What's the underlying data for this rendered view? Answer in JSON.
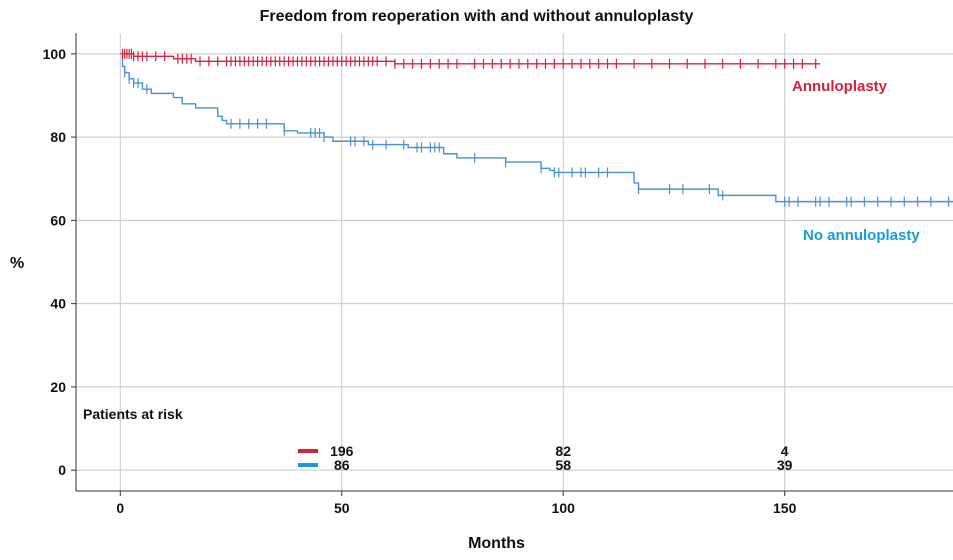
{
  "chart_data": {
    "type": "line",
    "title": "Freedom from reoperation with and without annuloplasty",
    "xlabel": "Months",
    "ylabel": "%",
    "xlim": [
      -10,
      188
    ],
    "ylim": [
      -5,
      105
    ],
    "x_ticks": [
      0,
      50,
      100,
      150
    ],
    "y_ticks": [
      0,
      20,
      40,
      60,
      80,
      100
    ],
    "grid": true,
    "series": [
      {
        "name": "Annuloplasty",
        "color": "#d9213c",
        "steps": [
          [
            0,
            100
          ],
          [
            3,
            99.4
          ],
          [
            12,
            98.8
          ],
          [
            17,
            98.2
          ],
          [
            62,
            97.6
          ],
          [
            158,
            97.6
          ]
        ],
        "censor_x": [
          0.5,
          1,
          1.5,
          2,
          2.5,
          3,
          4,
          5,
          6,
          8,
          10,
          13,
          14,
          15,
          16,
          18,
          20,
          22,
          24,
          25,
          26,
          27,
          28,
          29,
          30,
          31,
          32,
          33,
          34,
          35,
          36,
          37,
          38,
          39,
          40,
          41,
          42,
          43,
          44,
          45,
          46,
          47,
          48,
          49,
          50,
          51,
          52,
          53,
          54,
          55,
          56,
          57,
          58,
          60,
          62,
          64,
          66,
          68,
          70,
          72,
          74,
          76,
          80,
          82,
          84,
          86,
          88,
          90,
          92,
          94,
          96,
          98,
          100,
          102,
          104,
          106,
          108,
          110,
          112,
          116,
          120,
          124,
          128,
          132,
          136,
          140,
          144,
          148,
          150,
          152,
          154,
          157
        ]
      },
      {
        "name": "No annuloplasty",
        "color": "#4a90d9",
        "steps": [
          [
            0,
            100
          ],
          [
            0.5,
            97
          ],
          [
            1,
            95.5
          ],
          [
            2,
            94
          ],
          [
            3,
            93
          ],
          [
            5,
            91.5
          ],
          [
            7,
            90.5
          ],
          [
            12,
            89.5
          ],
          [
            14,
            88
          ],
          [
            17,
            87
          ],
          [
            22,
            85
          ],
          [
            23,
            84
          ],
          [
            24,
            83.2
          ],
          [
            37,
            81.5
          ],
          [
            40,
            81
          ],
          [
            46,
            80
          ],
          [
            48,
            79
          ],
          [
            56,
            78.2
          ],
          [
            65,
            77.5
          ],
          [
            73,
            76
          ],
          [
            76,
            75
          ],
          [
            87,
            74
          ],
          [
            95,
            72.5
          ],
          [
            97,
            72
          ],
          [
            98,
            71.5
          ],
          [
            116,
            69
          ],
          [
            117,
            67.5
          ],
          [
            135,
            66
          ],
          [
            148,
            64.5
          ],
          [
            188,
            64.5
          ]
        ],
        "censor_x": [
          1,
          2,
          3,
          4,
          6,
          25,
          27,
          29,
          31,
          33,
          37,
          43,
          44,
          45,
          46,
          52,
          53,
          55,
          57,
          60,
          64,
          67,
          68,
          70,
          71,
          72,
          80,
          87,
          95,
          98,
          99,
          102,
          104,
          105,
          108,
          110,
          117,
          124,
          127,
          133,
          136,
          150,
          151,
          153,
          157,
          158,
          160,
          164,
          165,
          168,
          171,
          174,
          177,
          180,
          183,
          187
        ]
      }
    ],
    "annotations": [
      {
        "text": "Annuloplasty",
        "color": "#d9213c"
      },
      {
        "text": "No annuloplasty",
        "color": "#1a9ad6"
      }
    ],
    "risk_table": {
      "title": "Patients at risk",
      "times": [
        50,
        100,
        150
      ],
      "rows": [
        {
          "color": "#d9213c",
          "values": [
            "196",
            "82",
            "4"
          ]
        },
        {
          "color": "#1a9ad6",
          "values": [
            "86",
            "58",
            "39"
          ]
        }
      ]
    }
  }
}
